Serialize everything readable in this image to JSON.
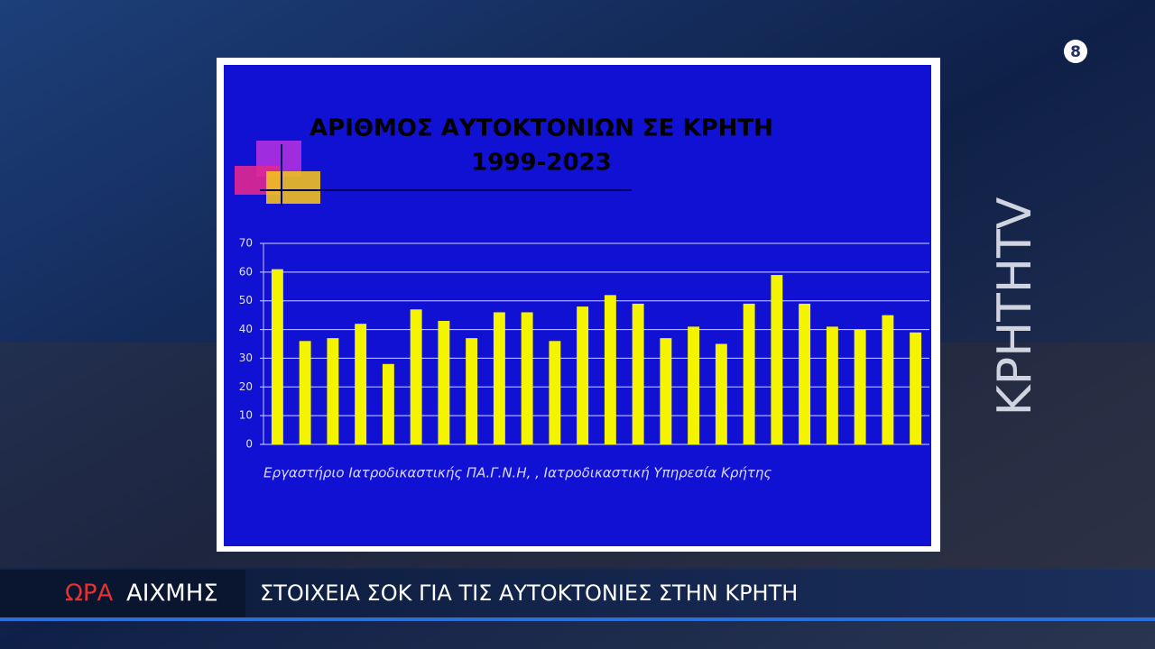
{
  "chart_data": {
    "type": "bar",
    "title": "ΑΡΙΘΜΟΣ ΑΥΤΟΚΤΟΝΙΩΝ ΣΕ ΚΡΗΤΗ",
    "subtitle": "1999-2023",
    "source": "Εργαστήριο Ιατροδικαστικής  ΠΑ.Γ.Ν.Η, , Ιατροδικαστική Υπηρεσία Κρήτης",
    "categories": [
      null,
      null,
      null,
      null,
      null,
      null,
      null,
      null,
      null,
      null,
      null,
      null,
      null,
      null,
      null,
      null,
      null,
      null,
      null,
      null,
      null,
      null,
      null,
      null
    ],
    "values": [
      61,
      36,
      37,
      42,
      28,
      47,
      43,
      37,
      46,
      46,
      36,
      48,
      52,
      49,
      37,
      41,
      35,
      49,
      59,
      49,
      41,
      40,
      45,
      39
    ],
    "color": "#f4f400",
    "ylim": [
      0,
      70
    ],
    "yticks": [
      0,
      10,
      20,
      30,
      40,
      50,
      60,
      70
    ],
    "grid": true
  },
  "ticker": {
    "show_first": "ΩΡΑ",
    "show_second": "ΑΙΧΜΗΣ",
    "headline": "ΣΤΟΙΧΕΙΑ ΣΟΚ ΓΙΑ ΤΙΣ ΑΥΤΟΚΤΟΝΙΕΣ ΣΤΗΝ ΚΡΗΤΗ"
  },
  "channel": {
    "logo": "ΚΡΗΤΗTV",
    "number": "8"
  }
}
